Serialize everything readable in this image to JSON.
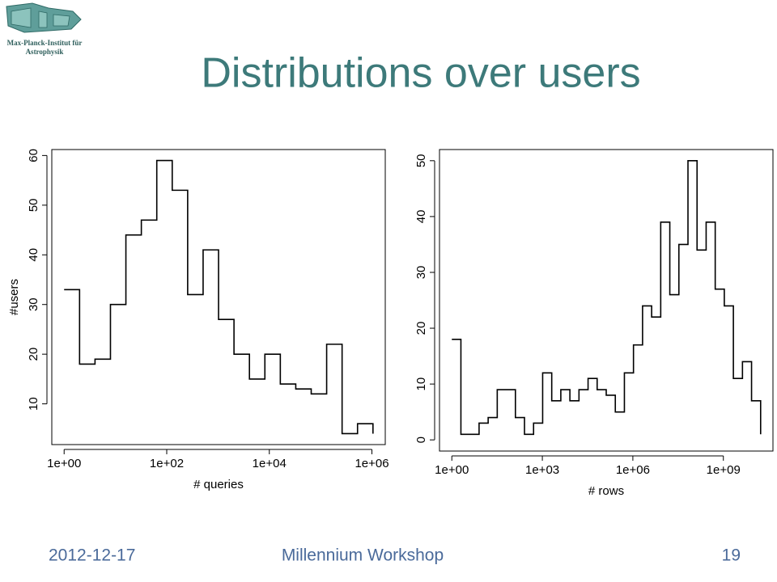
{
  "slide": {
    "title": "Distributions over users",
    "date": "2012-12-17",
    "footer": "Millennium Workshop",
    "page": "19",
    "logo": {
      "line1": "Max-Planck-Institut für",
      "line2": "Astrophysik"
    }
  },
  "chart_data": [
    {
      "type": "line",
      "step": true,
      "xscale": "log",
      "color": "#000000",
      "xlabel": "# queries",
      "ylabel": "#users",
      "x": [
        1,
        2,
        4,
        8,
        16,
        32,
        64,
        128,
        256,
        512,
        1024,
        2048,
        4096,
        8192,
        16384,
        32768,
        65536,
        131072,
        262144,
        524288,
        1048576
      ],
      "values": [
        33,
        18,
        19,
        30,
        44,
        47,
        59,
        53,
        32,
        41,
        27,
        20,
        15,
        20,
        14,
        13,
        12,
        22,
        4,
        6,
        4
      ],
      "xlim": [
        0.575,
        1820000
      ],
      "xticks": [
        {
          "value": 1,
          "label": "1e+00"
        },
        {
          "value": 100,
          "label": "1e+02"
        },
        {
          "value": 10000,
          "label": "1e+04"
        },
        {
          "value": 1000000,
          "label": "1e+06"
        }
      ],
      "ylim": [
        1.8,
        61.2
      ],
      "yticks": [
        10,
        20,
        30,
        40,
        50,
        60
      ]
    },
    {
      "type": "line",
      "step": true,
      "xscale": "log",
      "color": "#000000",
      "xlabel": "# rows",
      "x": [
        1,
        2,
        4,
        8,
        16,
        32,
        64,
        128,
        256,
        512,
        1024,
        2048,
        4096,
        8192,
        16384,
        32768,
        65536,
        131072,
        262144,
        524288,
        1048576,
        2097152,
        4194304,
        8388608,
        16777216,
        33554432,
        67108864,
        134217728,
        268435456,
        536870912,
        1073741824,
        2147483648,
        4294967296,
        8589934592,
        17179869184
      ],
      "values": [
        18,
        1,
        1,
        3,
        4,
        9,
        9,
        4,
        1,
        3,
        12,
        7,
        9,
        7,
        9,
        11,
        9,
        8,
        5,
        12,
        17,
        24,
        22,
        39,
        26,
        35,
        50,
        34,
        39,
        27,
        24,
        11,
        14,
        7,
        1
      ],
      "xlim": [
        0.39,
        44000000000
      ],
      "xticks": [
        {
          "value": 1,
          "label": "1e+00"
        },
        {
          "value": 1000,
          "label": "1e+03"
        },
        {
          "value": 1000000,
          "label": "1e+06"
        },
        {
          "value": 1000000000,
          "label": "1e+09"
        }
      ],
      "ylim": [
        -2,
        52
      ],
      "yticks": [
        0,
        10,
        20,
        30,
        40,
        50
      ]
    }
  ]
}
